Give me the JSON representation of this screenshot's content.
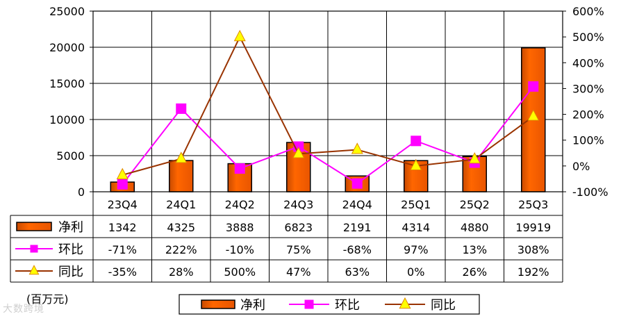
{
  "chart_data": {
    "type": "bar",
    "categories": [
      "23Q4",
      "24Q1",
      "24Q2",
      "24Q3",
      "24Q4",
      "25Q1",
      "25Q2",
      "25Q3"
    ],
    "unit_label": "(百万元)",
    "y_left": {
      "min": 0,
      "max": 25000,
      "ticks": [
        "0",
        "5000",
        "10000",
        "15000",
        "20000",
        "25000"
      ]
    },
    "y_right": {
      "min": -100,
      "max": 600,
      "ticks": [
        "-100%",
        "0%",
        "100%",
        "200%",
        "300%",
        "400%",
        "500%",
        "600%"
      ]
    },
    "series": [
      {
        "name": "净利",
        "kind": "bar",
        "axis": "left",
        "values": [
          1342,
          4325,
          3888,
          6823,
          2191,
          4314,
          4880,
          19919
        ],
        "labels": [
          "1342",
          "4325",
          "3888",
          "6823",
          "2191",
          "4314",
          "4880",
          "19919"
        ]
      },
      {
        "name": "环比",
        "kind": "line",
        "axis": "right",
        "values": [
          -71,
          222,
          -10,
          75,
          -68,
          97,
          13,
          308
        ],
        "labels": [
          "-71%",
          "222%",
          "-10%",
          "75%",
          "-68%",
          "97%",
          "13%",
          "308%"
        ]
      },
      {
        "name": "同比",
        "kind": "line",
        "axis": "right",
        "values": [
          -35,
          28,
          500,
          47,
          63,
          0,
          26,
          192
        ],
        "labels": [
          "-35%",
          "28%",
          "500%",
          "47%",
          "63%",
          "0%",
          "26%",
          "192%"
        ]
      }
    ],
    "legend": {
      "placement": "bottom",
      "items": [
        "净利",
        "环比",
        "同比"
      ]
    },
    "grid": {
      "horizontal": true,
      "vertical": true
    },
    "colors": {
      "bar": "#FF6600",
      "qoq": "#FF00FF",
      "yoy": "#993300",
      "marker_yoy": "#FFFF00"
    }
  },
  "watermark": "大数跨境"
}
